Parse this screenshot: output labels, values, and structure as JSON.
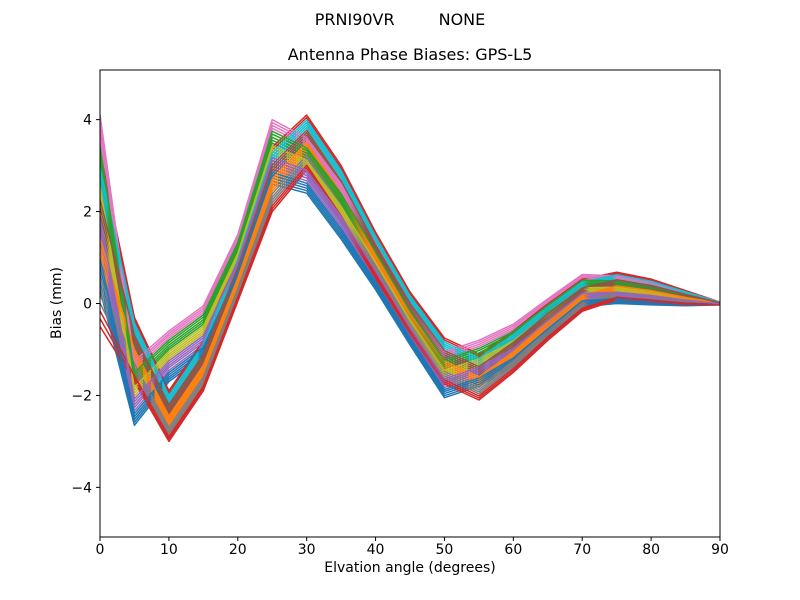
{
  "header": {
    "title_left": "PRNI90VR",
    "title_right": "NONE",
    "axes_title": "Antenna Phase Biases: GPS-L5"
  },
  "axes": {
    "xlabel": "Elvation angle (degrees)",
    "ylabel": "Bias (mm)",
    "xlim": [
      0,
      90
    ],
    "ylim": [
      -5.08,
      5.08
    ],
    "x_tick_values": [
      0,
      10,
      20,
      30,
      40,
      50,
      60,
      70,
      80,
      90
    ],
    "x_tick_labels": [
      "0",
      "10",
      "20",
      "30",
      "40",
      "50",
      "60",
      "70",
      "80",
      "90"
    ],
    "y_tick_values": [
      -4,
      -2,
      0,
      2,
      4
    ],
    "y_tick_labels": [
      "−4",
      "−2",
      "0",
      "2",
      "4"
    ],
    "grid": false,
    "legend": "none",
    "background": "#ffffff",
    "spine_color": "#000000"
  },
  "chart_data": {
    "type": "line",
    "title": "Antenna Phase Biases: GPS-L5",
    "xlabel": "Elvation angle (degrees)",
    "ylabel": "Bias (mm)",
    "x": [
      0,
      5,
      10,
      15,
      20,
      25,
      30,
      35,
      40,
      45,
      50,
      55,
      60,
      65,
      70,
      75,
      80,
      85,
      90
    ],
    "band_max": [
      4.1,
      -0.3,
      -0.6,
      -0.05,
      1.5,
      4.0,
      4.1,
      3.0,
      1.55,
      0.25,
      -0.75,
      -0.8,
      -0.45,
      0.1,
      0.63,
      0.68,
      0.53,
      0.28,
      0.03
    ],
    "band_min": [
      -0.5,
      -2.65,
      -3.0,
      -1.9,
      0.05,
      2.0,
      2.4,
      1.4,
      0.3,
      -0.9,
      -2.05,
      -2.1,
      -1.5,
      -0.8,
      -0.17,
      0.0,
      -0.03,
      -0.05,
      -0.03
    ],
    "center_a": [
      2.2,
      -1.95,
      -1.15,
      -0.6,
      1.0,
      3.3,
      3.0,
      2.0,
      0.8,
      -0.45,
      -1.55,
      -1.3,
      -0.9,
      -0.3,
      0.28,
      0.3,
      0.22,
      0.1,
      0.0
    ],
    "center_b": [
      1.4,
      -1.0,
      -2.45,
      -1.35,
      0.55,
      2.7,
      3.5,
      2.4,
      1.05,
      -0.2,
      -1.25,
      -1.6,
      -1.05,
      -0.4,
      0.18,
      0.38,
      0.28,
      0.13,
      0.0
    ],
    "halfwidth": [
      1.9,
      0.7,
      0.55,
      0.55,
      0.5,
      0.7,
      0.6,
      0.6,
      0.5,
      0.45,
      0.5,
      0.5,
      0.45,
      0.4,
      0.35,
      0.3,
      0.25,
      0.15,
      0.03
    ],
    "series_model": "y[k] = center_<family>[k] + t * halfwidth[k]",
    "palette": [
      "#1f77b4",
      "#ff7f0e",
      "#2ca02c",
      "#d62728",
      "#9467bd",
      "#8c564b",
      "#e377c2",
      "#7f7f7f",
      "#bcbd22",
      "#17becf"
    ],
    "series": [
      {
        "color": "#1f77b4",
        "family": "a",
        "t": -1.0
      },
      {
        "color": "#ff7f0e",
        "family": "b",
        "t": -0.36
      },
      {
        "color": "#2ca02c",
        "family": "a",
        "t": 0.27
      },
      {
        "color": "#d62728",
        "family": "b",
        "t": 0.91
      },
      {
        "color": "#9467bd",
        "family": "a",
        "t": -0.55
      },
      {
        "color": "#8c564b",
        "family": "b",
        "t": 0.09
      },
      {
        "color": "#e377c2",
        "family": "a",
        "t": 0.73
      },
      {
        "color": "#7f7f7f",
        "family": "b",
        "t": -0.73
      },
      {
        "color": "#bcbd22",
        "family": "a",
        "t": -0.09
      },
      {
        "color": "#17becf",
        "family": "b",
        "t": 0.55
      },
      {
        "color": "#1f77b4",
        "family": "a",
        "t": -0.91
      },
      {
        "color": "#ff7f0e",
        "family": "b",
        "t": -0.27
      },
      {
        "color": "#2ca02c",
        "family": "a",
        "t": 0.36
      },
      {
        "color": "#d62728",
        "family": "b",
        "t": 1.0
      },
      {
        "color": "#9467bd",
        "family": "a",
        "t": -0.45
      },
      {
        "color": "#8c564b",
        "family": "b",
        "t": 0.18
      },
      {
        "color": "#e377c2",
        "family": "a",
        "t": 0.82
      },
      {
        "color": "#7f7f7f",
        "family": "b",
        "t": -0.64
      },
      {
        "color": "#bcbd22",
        "family": "a",
        "t": 0.0
      },
      {
        "color": "#17becf",
        "family": "b",
        "t": 0.64
      },
      {
        "color": "#1f77b4",
        "family": "a",
        "t": -0.82
      },
      {
        "color": "#ff7f0e",
        "family": "b",
        "t": -0.18
      },
      {
        "color": "#2ca02c",
        "family": "a",
        "t": 0.45
      },
      {
        "color": "#d62728",
        "family": "b",
        "t": -1.0
      },
      {
        "color": "#9467bd",
        "family": "a",
        "t": -0.36
      },
      {
        "color": "#8c564b",
        "family": "b",
        "t": 0.27
      },
      {
        "color": "#e377c2",
        "family": "a",
        "t": 0.91
      },
      {
        "color": "#7f7f7f",
        "family": "b",
        "t": -0.55
      },
      {
        "color": "#bcbd22",
        "family": "a",
        "t": 0.09
      },
      {
        "color": "#17becf",
        "family": "b",
        "t": 0.73
      },
      {
        "color": "#1f77b4",
        "family": "a",
        "t": -0.73
      },
      {
        "color": "#ff7f0e",
        "family": "b",
        "t": -0.09
      },
      {
        "color": "#2ca02c",
        "family": "a",
        "t": 0.55
      },
      {
        "color": "#d62728",
        "family": "b",
        "t": -0.91
      },
      {
        "color": "#9467bd",
        "family": "a",
        "t": -0.27
      },
      {
        "color": "#8c564b",
        "family": "b",
        "t": 0.36
      },
      {
        "color": "#e377c2",
        "family": "a",
        "t": 1.0
      },
      {
        "color": "#7f7f7f",
        "family": "b",
        "t": -0.45
      },
      {
        "color": "#bcbd22",
        "family": "a",
        "t": 0.18
      },
      {
        "color": "#17becf",
        "family": "b",
        "t": 0.82
      },
      {
        "color": "#1f77b4",
        "family": "a",
        "t": -0.64
      },
      {
        "color": "#ff7f0e",
        "family": "b",
        "t": 0.0
      },
      {
        "color": "#2ca02c",
        "family": "a",
        "t": 0.64
      },
      {
        "color": "#d62728",
        "family": "b",
        "t": -0.82
      },
      {
        "color": "#9467bd",
        "family": "a",
        "t": -0.18
      },
      {
        "color": "#8c564b",
        "family": "b",
        "t": 0.45
      }
    ]
  }
}
